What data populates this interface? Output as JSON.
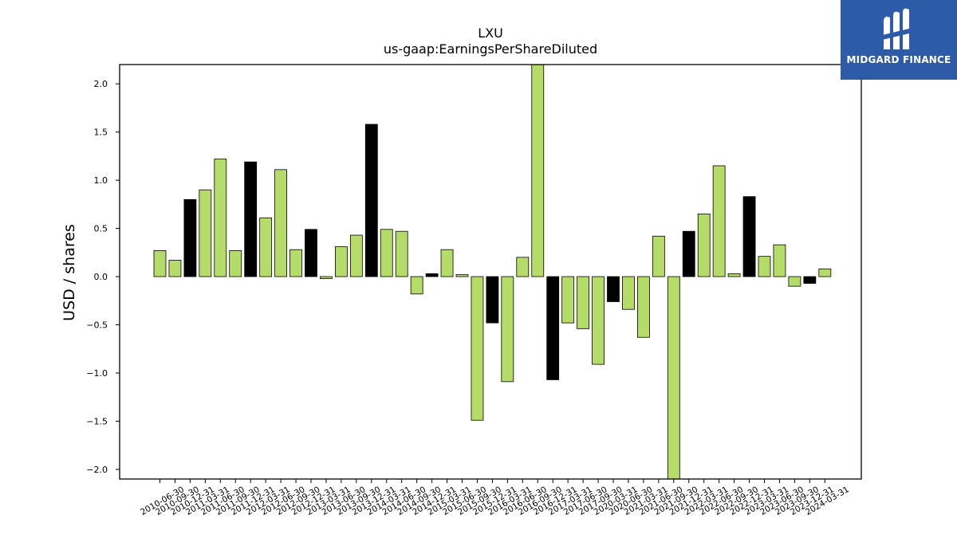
{
  "chart_data": {
    "type": "bar",
    "title": "LXU",
    "subtitle": "us-gaap:EarningsPerShareDiluted",
    "xlabel": "",
    "ylabel": "USD / shares",
    "ylim": [
      -2.1,
      2.2
    ],
    "yticks": [
      -2.0,
      -1.5,
      -1.0,
      -0.5,
      0.0,
      0.5,
      1.0,
      1.5,
      2.0
    ],
    "ytick_labels": [
      "−2.0",
      "−1.5",
      "−1.0",
      "−0.5",
      "0.0",
      "0.5",
      "1.0",
      "1.5",
      "2.0"
    ],
    "grid": false,
    "colors": {
      "green": "#b5dc69",
      "black": "#000000",
      "edge": "#000000"
    },
    "categories": [
      "2010-06-30",
      "2010-09-30",
      "2010-12-31",
      "2011-03-31",
      "2011-06-30",
      "2011-09-30",
      "2011-12-31",
      "2012-03-31",
      "2012-06-30",
      "2012-09-30",
      "2012-12-31",
      "2013-03-31",
      "2013-06-30",
      "2013-09-30",
      "2013-12-31",
      "2014-03-31",
      "2014-06-30",
      "2014-09-30",
      "2014-12-31",
      "2015-03-31",
      "2015-06-30",
      "2015-09-30",
      "2015-12-31",
      "2016-03-31",
      "2016-06-30",
      "2016-09-30",
      "2016-12-31",
      "2017-03-31",
      "2017-06-30",
      "2017-09-30",
      "2020-03-31",
      "2020-06-30",
      "2021-03-31",
      "2021-06-30",
      "2021-09-30",
      "2021-12-31",
      "2022-03-31",
      "2022-06-30",
      "2022-09-30",
      "2022-12-31",
      "2023-03-31",
      "2023-06-30",
      "2023-09-30",
      "2023-12-31",
      "2024-03-31"
    ],
    "values": [
      0.27,
      0.17,
      0.8,
      0.9,
      1.22,
      0.27,
      1.19,
      0.61,
      1.11,
      0.28,
      0.49,
      -0.02,
      0.31,
      0.43,
      1.58,
      0.49,
      0.47,
      -0.18,
      0.03,
      0.28,
      0.02,
      -1.49,
      -0.48,
      -1.09,
      0.2,
      2.2,
      -1.07,
      -0.48,
      -0.54,
      -0.91,
      -0.26,
      -0.34,
      -0.63,
      0.42,
      -2.1,
      0.47,
      0.65,
      1.15,
      0.03,
      0.83,
      0.21,
      0.33,
      -0.1,
      -0.07,
      0.08
    ],
    "bar_colors": [
      "green",
      "green",
      "black",
      "green",
      "green",
      "green",
      "black",
      "green",
      "green",
      "green",
      "black",
      "green",
      "green",
      "green",
      "black",
      "green",
      "green",
      "green",
      "black",
      "green",
      "green",
      "green",
      "black",
      "green",
      "green",
      "green",
      "black",
      "green",
      "green",
      "green",
      "black",
      "green",
      "green",
      "green",
      "green",
      "black",
      "green",
      "green",
      "green",
      "black",
      "green",
      "green",
      "green",
      "black",
      "green"
    ]
  },
  "brand": {
    "name": "MIDGARD FINANCE",
    "background": "#2d5ba8",
    "icon": "midgard-logo-icon"
  }
}
